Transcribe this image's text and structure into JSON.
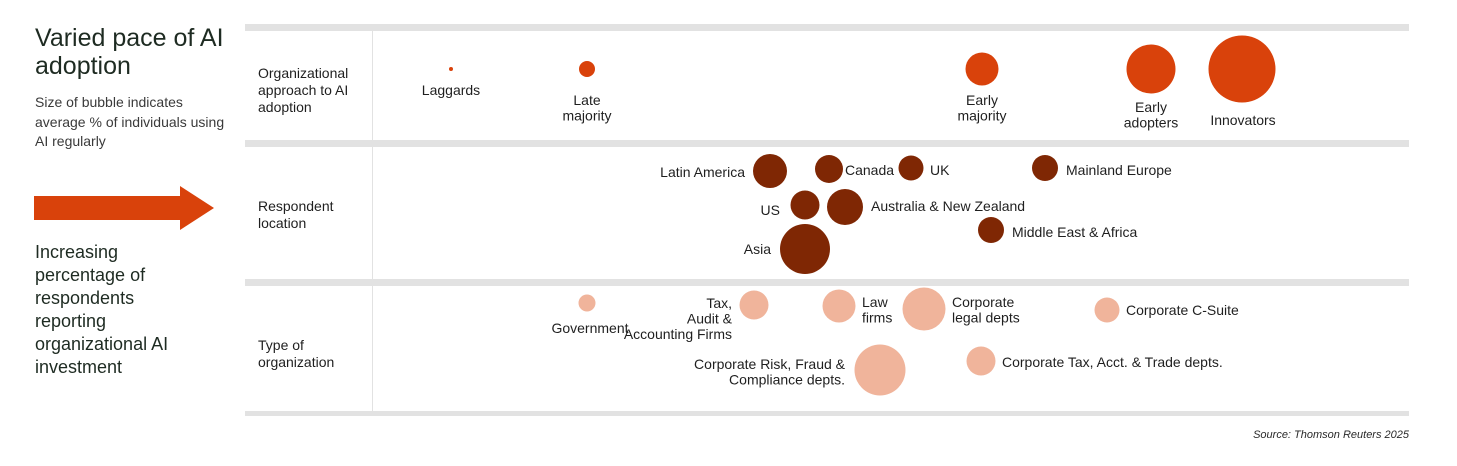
{
  "header": {
    "title": "Varied pace of AI adoption",
    "subtitle": "Size of bubble indicates average % of individuals using AI regularly",
    "arrow_note": "Increasing percentage of respondents reporting organizational AI investment"
  },
  "rows": {
    "approach": "Organizational approach to AI adoption",
    "location": "Respondent location",
    "org_type": "Type of organization"
  },
  "source": "Source: Thomson Reuters 2025",
  "colors": {
    "approach": "#d9420b",
    "location": "#7f2704",
    "org_type": "#f0b49b",
    "arrow": "#d9420b",
    "divider": "#e2e2e2"
  },
  "chart_data": {
    "type": "bubble",
    "x_axis_note": "Increasing percentage of respondents reporting organizational AI investment",
    "size_note": "Size of bubble indicates average % of individuals using AI regularly",
    "rows": [
      {
        "name": "Organizational approach to AI adoption",
        "points": [
          {
            "label": "Laggards",
            "pos": 0.18,
            "lane": 0,
            "size": 4
          },
          {
            "label": "Late majority",
            "pos": 0.2,
            "lane": 0,
            "size": 16
          },
          {
            "label": "Early majority",
            "pos": 0.57,
            "lane": 0,
            "size": 33
          },
          {
            "label": "Early adopters",
            "pos": 0.72,
            "lane": 0,
            "size": 49
          },
          {
            "label": "Innovators",
            "pos": 0.81,
            "lane": 0,
            "size": 67
          }
        ]
      },
      {
        "name": "Respondent location",
        "points": [
          {
            "label": "Latin America",
            "pos": 0.43,
            "lane": 0,
            "size": 34
          },
          {
            "label": "Canada",
            "pos": 0.46,
            "lane": 0,
            "size": 28
          },
          {
            "label": "UK",
            "pos": 0.51,
            "lane": 0,
            "size": 25
          },
          {
            "label": "Mainland Europe",
            "pos": 0.6,
            "lane": 0,
            "size": 26
          },
          {
            "label": "US",
            "pos": 0.44,
            "lane": 1,
            "size": 29
          },
          {
            "label": "Australia & New Zealand",
            "pos": 0.45,
            "lane": 1,
            "size": 36
          },
          {
            "label": "Middle East & Africa",
            "pos": 0.57,
            "lane": 2,
            "size": 26
          },
          {
            "label": "Asia",
            "pos": 0.44,
            "lane": 3,
            "size": 50
          }
        ]
      },
      {
        "name": "Type of organization",
        "points": [
          {
            "label": "Government",
            "pos": 0.27,
            "lane": 0,
            "size": 17
          },
          {
            "label": "Tax, Audit & Accounting Firms",
            "pos": 0.38,
            "lane": 0,
            "size": 29
          },
          {
            "label": "Law firms",
            "pos": 0.41,
            "lane": 0,
            "size": 33
          },
          {
            "label": "Corporate legal depts",
            "pos": 0.47,
            "lane": 0,
            "size": 43
          },
          {
            "label": "Corporate C-Suite",
            "pos": 0.63,
            "lane": 0,
            "size": 25
          },
          {
            "label": "Corporate Risk, Fraud & Compliance depts.",
            "pos": 0.47,
            "lane": 1,
            "size": 51
          },
          {
            "label": "Corporate Tax, Acct. & Trade depts.",
            "pos": 0.52,
            "lane": 1,
            "size": 29
          }
        ]
      }
    ]
  }
}
